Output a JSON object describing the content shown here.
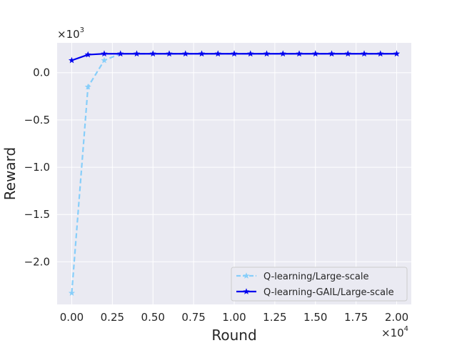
{
  "chart_data": {
    "type": "line",
    "xlabel": "Round",
    "ylabel": "Reward",
    "x_multiplier_label": "×10",
    "x_multiplier_exp": "4",
    "y_multiplier_label": "×10",
    "y_multiplier_exp": "3",
    "xlim": [
      -0.09,
      2.09
    ],
    "ylim": [
      -2.45,
      0.315
    ],
    "x_ticks": [
      0.0,
      0.25,
      0.5,
      0.75,
      1.0,
      1.25,
      1.5,
      1.75,
      2.0
    ],
    "x_tick_labels": [
      "0.00",
      "0.25",
      "0.50",
      "0.75",
      "1.00",
      "1.25",
      "1.50",
      "1.75",
      "2.00"
    ],
    "y_ticks": [
      0.0,
      -0.5,
      -1.0,
      -1.5,
      -2.0
    ],
    "y_tick_labels": [
      "0.0",
      "−0.5",
      "−1.0",
      "−1.5",
      "−2.0"
    ],
    "grid": true,
    "legend_position": "lower-right",
    "series": [
      {
        "name": "Q-learning/Large-scale",
        "color": "#87CEFA",
        "style": "dashed",
        "marker": "star",
        "x": [
          0.0,
          0.1,
          0.2,
          0.3,
          0.4,
          0.5,
          0.6,
          0.7,
          0.8,
          0.9,
          1.0,
          1.1,
          1.2,
          1.3,
          1.4,
          1.5,
          1.6,
          1.7,
          1.8,
          1.9,
          2.0
        ],
        "y": [
          -2.33,
          -0.15,
          0.13,
          0.2,
          0.2,
          0.2,
          0.2,
          0.2,
          0.2,
          0.2,
          0.2,
          0.2,
          0.2,
          0.2,
          0.2,
          0.2,
          0.2,
          0.2,
          0.2,
          0.2,
          0.2
        ]
      },
      {
        "name": "Q-learning-GAIL/Large-scale",
        "color": "#0000EE",
        "style": "solid",
        "marker": "star",
        "x": [
          0.0,
          0.1,
          0.2,
          0.3,
          0.4,
          0.5,
          0.6,
          0.7,
          0.8,
          0.9,
          1.0,
          1.1,
          1.2,
          1.3,
          1.4,
          1.5,
          1.6,
          1.7,
          1.8,
          1.9,
          2.0
        ],
        "y": [
          0.13,
          0.19,
          0.2,
          0.2,
          0.2,
          0.2,
          0.2,
          0.2,
          0.2,
          0.2,
          0.2,
          0.2,
          0.2,
          0.2,
          0.2,
          0.2,
          0.2,
          0.2,
          0.2,
          0.2,
          0.2
        ]
      }
    ]
  },
  "colors": {
    "plot_background": "#EAEAF2",
    "grid": "#FFFFFF",
    "text": "#262626"
  }
}
